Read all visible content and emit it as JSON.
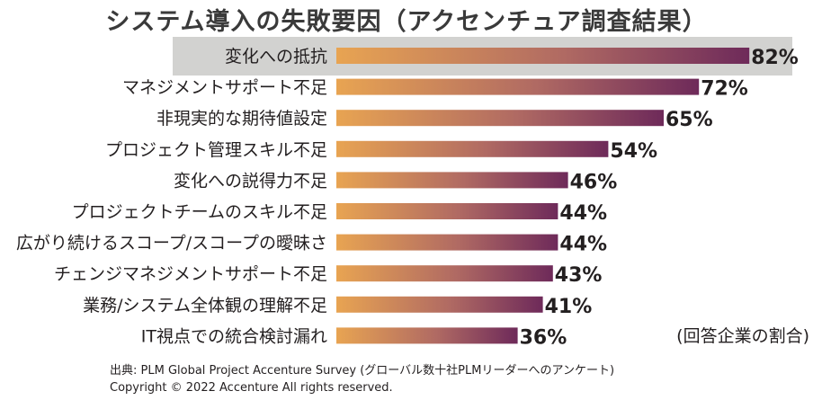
{
  "title": "システム導入の失敗要因（アクセンチュア調査結果）",
  "unit_note": "(回答企業の割合)",
  "source_line": "出典: PLM Global Project Accenture Survey (グローバル数十社PLMリーダーへのアンケート)",
  "copyright_line": "Copyright © 2022 Accenture All rights reserved.",
  "colors": {
    "bar_start": "#e8a452",
    "bar_mid": "#b06a63",
    "bar_end": "#6e2a5a",
    "highlight": "#d2d2d0"
  },
  "chart_data": {
    "type": "bar",
    "orientation": "horizontal",
    "title": "システム導入の失敗要因（アクセンチュア調査結果）",
    "unit": "%",
    "xlim": [
      0,
      100
    ],
    "grid": false,
    "highlighted_category": "変化への抵抗",
    "categories": [
      "変化への抵抗",
      "マネジメントサポート不足",
      "非現実的な期待値設定",
      "プロジェクト管理スキル不足",
      "変化への説得力不足",
      "プロジェクトチームのスキル不足",
      "広がり続けるスコープ/スコープの曖昧さ",
      "チェンジマネジメントサポート不足",
      "業務/システム全体観の理解不足",
      "IT視点での統合検討漏れ"
    ],
    "values": [
      82,
      72,
      65,
      54,
      46,
      44,
      44,
      43,
      41,
      36
    ],
    "value_labels": [
      "82%",
      "72%",
      "65%",
      "54%",
      "46%",
      "44%",
      "44%",
      "43%",
      "41%",
      "36%"
    ]
  }
}
